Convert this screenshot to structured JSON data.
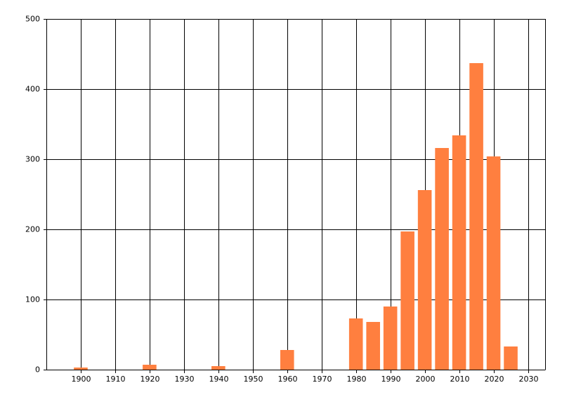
{
  "chart_data": {
    "type": "bar",
    "x": [
      1900,
      1920,
      1940,
      1960,
      1980,
      1985,
      1990,
      1995,
      2000,
      2005,
      2010,
      2015,
      2020,
      2025
    ],
    "values": [
      3,
      7,
      5,
      28,
      73,
      68,
      90,
      197,
      256,
      316,
      334,
      437,
      304,
      33
    ],
    "color": "#ff7f3f",
    "xlim": [
      1890,
      2035
    ],
    "xticks": [
      1900,
      1910,
      1920,
      1930,
      1940,
      1950,
      1960,
      1970,
      1980,
      1990,
      2000,
      2010,
      2020,
      2030
    ],
    "ylim": [
      0,
      500
    ],
    "yticks": [
      0,
      100,
      200,
      300,
      400,
      500
    ],
    "grid": true
  }
}
